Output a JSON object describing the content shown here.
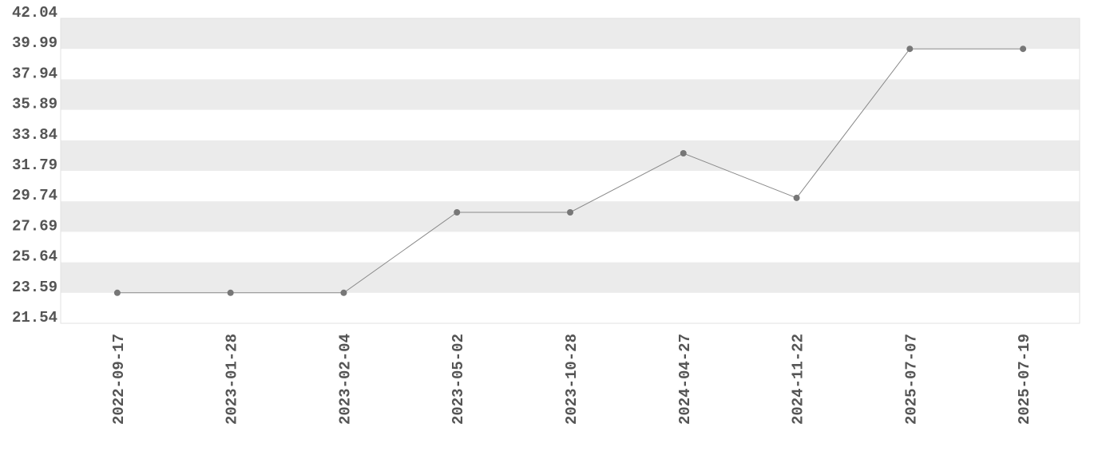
{
  "chart_data": {
    "type": "line",
    "categories": [
      "2022-09-17",
      "2023-01-28",
      "2023-02-04",
      "2023-05-02",
      "2023-10-28",
      "2024-04-27",
      "2024-11-22",
      "2025-07-07",
      "2025-07-19"
    ],
    "values": [
      23.59,
      23.59,
      23.59,
      29.0,
      29.0,
      32.97,
      29.97,
      39.99,
      39.99
    ],
    "color": "#777777",
    "ylim": [
      21.54,
      42.04
    ],
    "yticks": [
      21.54,
      23.59,
      25.64,
      27.69,
      29.74,
      31.79,
      33.84,
      35.89,
      37.94,
      39.99,
      42.04
    ],
    "grid": true,
    "band_color": "#ebebeb"
  }
}
